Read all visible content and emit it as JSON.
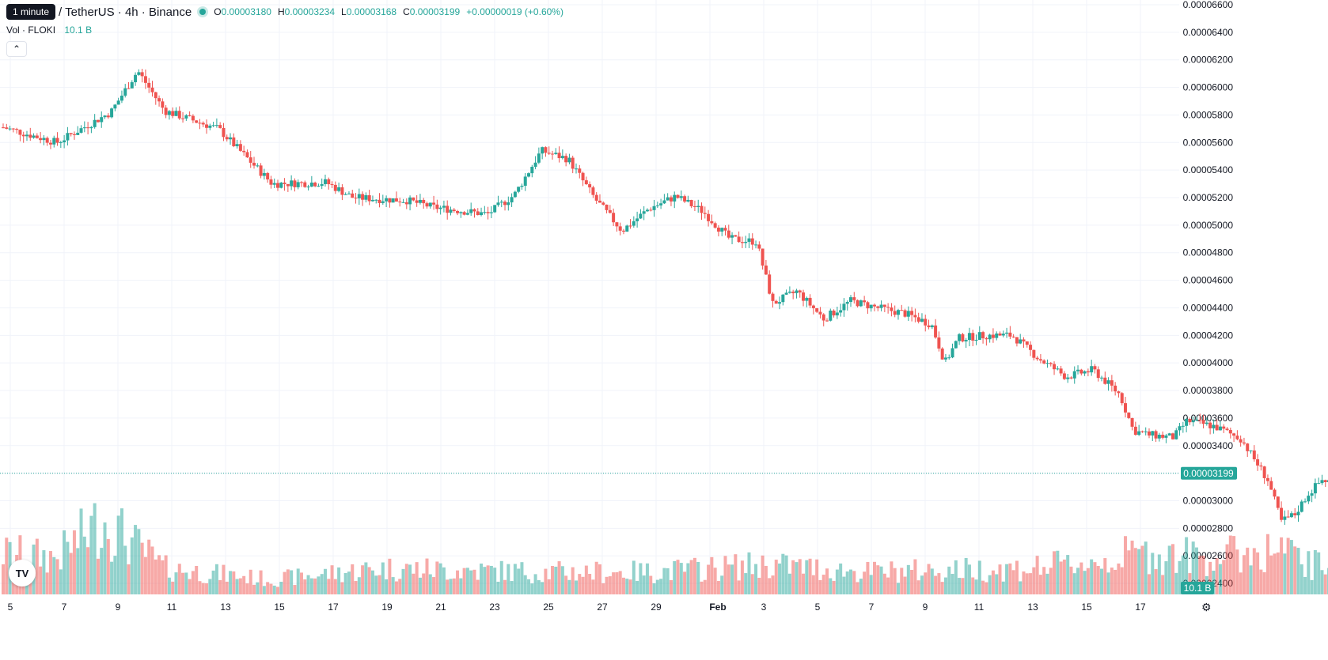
{
  "legend": {
    "tooltip": "1 minute",
    "title": "/ TetherUS · 4h · Binance",
    "o_label": "O",
    "o": "0.00003180",
    "h_label": "H",
    "h": "0.00003234",
    "l_label": "L",
    "l": "0.00003168",
    "c_label": "C",
    "c": "0.00003199",
    "change": "+0.00000019 (+0.60%)"
  },
  "volume_legend": {
    "label": "Vol · FLOKI",
    "value": "10.1 B"
  },
  "price_axis": {
    "ticks": [
      "0.00006600",
      "0.00006400",
      "0.00006200",
      "0.00006000",
      "0.00005800",
      "0.00005600",
      "0.00005400",
      "0.00005200",
      "0.00005000",
      "0.00004800",
      "0.00004600",
      "0.00004400",
      "0.00004200",
      "0.00004000",
      "0.00003800",
      "0.00003600",
      "0.00003400",
      "0.00003200",
      "0.00003000",
      "0.00002800",
      "0.00002600",
      "0.00002400"
    ],
    "current_price": "0.00003199",
    "volume_badge": "10.1 B"
  },
  "time_axis": {
    "ticks": [
      "5",
      "7",
      "9",
      "11",
      "13",
      "15",
      "17",
      "19",
      "21",
      "23",
      "25",
      "27",
      "29",
      "Feb",
      "3",
      "5",
      "7",
      "9",
      "11",
      "13",
      "15",
      "17"
    ]
  },
  "colors": {
    "up": "#26a69a",
    "down": "#ef5350",
    "grid": "#f0f3fa",
    "text": "#131722"
  },
  "icons": [
    "chevron-up-icon",
    "tradingview-logo-icon",
    "settings-icon"
  ],
  "chart_data": {
    "type": "candlestick",
    "interval": "4h",
    "ylim": [
      2.32e-05,
      6.6e-05
    ],
    "close_path": [
      [
        0,
        5.71e-05
      ],
      [
        2,
        5.6e-05
      ],
      [
        4,
        5.82e-05
      ],
      [
        5,
        6.12e-05
      ],
      [
        6,
        5.83e-05
      ],
      [
        8,
        5.7e-05
      ],
      [
        9,
        5.5e-05
      ],
      [
        10,
        5.3e-05
      ],
      [
        12,
        5.31e-05
      ],
      [
        13,
        5.2e-05
      ],
      [
        15,
        5.18e-05
      ],
      [
        16,
        5.13e-05
      ],
      [
        18,
        5.08e-05
      ],
      [
        19,
        5.22e-05
      ],
      [
        20,
        5.54e-05
      ],
      [
        21,
        5.48e-05
      ],
      [
        22,
        5.19e-05
      ],
      [
        23,
        4.96e-05
      ],
      [
        24,
        5.12e-05
      ],
      [
        25,
        5.21e-05
      ],
      [
        26,
        5.1e-05
      ],
      [
        27,
        4.9e-05
      ],
      [
        28,
        4.88e-05
      ],
      [
        28.6,
        4.43e-05
      ],
      [
        29.5,
        4.52e-05
      ],
      [
        30.5,
        4.32e-05
      ],
      [
        31.5,
        4.45e-05
      ],
      [
        32.5,
        4.4e-05
      ],
      [
        33.5,
        4.36e-05
      ],
      [
        34.5,
        4.28e-05
      ],
      [
        35,
        4e-05
      ],
      [
        35.5,
        4.18e-05
      ],
      [
        36.5,
        4.2e-05
      ],
      [
        37.5,
        4.2e-05
      ],
      [
        38.5,
        4.03e-05
      ],
      [
        39.5,
        3.9e-05
      ],
      [
        40.5,
        3.95e-05
      ],
      [
        41.5,
        3.77e-05
      ],
      [
        42,
        3.51e-05
      ],
      [
        42.5,
        3.48e-05
      ],
      [
        43.5,
        3.46e-05
      ],
      [
        44,
        3.58e-05
      ],
      [
        45,
        3.54e-05
      ],
      [
        46,
        3.45e-05
      ],
      [
        46.5,
        3.3e-05
      ],
      [
        47,
        3.15e-05
      ],
      [
        47.5,
        2.85e-05
      ],
      [
        48,
        2.9e-05
      ],
      [
        48.5,
        3.05e-05
      ],
      [
        49,
        3.15e-05
      ],
      [
        50,
        3.12e-05
      ],
      [
        51,
        3.08e-05
      ],
      [
        52,
        3.02e-05
      ],
      [
        53,
        2.98e-05
      ],
      [
        54,
        2.88e-05
      ],
      [
        55,
        2.98e-05
      ],
      [
        56,
        3.02e-05
      ],
      [
        57,
        3.08e-05
      ],
      [
        58,
        3.18e-05
      ],
      [
        58.5,
        3.44e-05
      ],
      [
        59,
        3.4e-05
      ],
      [
        59.5,
        3.18e-05
      ],
      [
        60,
        3.17e-05
      ],
      [
        60.4,
        3.19e-05
      ]
    ],
    "volume_path": [
      [
        0,
        0.55
      ],
      [
        2,
        0.5
      ],
      [
        3.7,
        1.0
      ],
      [
        6,
        0.35
      ],
      [
        10,
        0.2
      ],
      [
        14,
        0.35
      ],
      [
        20,
        0.3
      ],
      [
        24,
        0.3
      ],
      [
        28.5,
        0.4
      ],
      [
        32,
        0.3
      ],
      [
        38,
        0.35
      ],
      [
        41,
        0.45
      ],
      [
        42,
        0.55
      ],
      [
        45,
        0.5
      ],
      [
        46,
        0.55
      ],
      [
        47.5,
        0.6
      ],
      [
        48.5,
        0.4
      ],
      [
        52,
        0.35
      ],
      [
        56,
        0.3
      ],
      [
        58,
        0.45
      ],
      [
        59,
        0.5
      ],
      [
        60.4,
        0.3
      ]
    ]
  }
}
